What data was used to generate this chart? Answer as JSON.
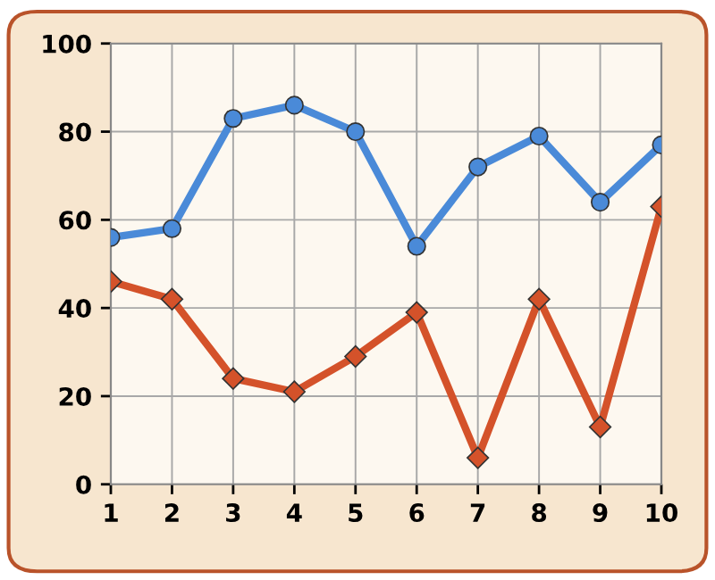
{
  "chart_data": {
    "type": "line",
    "x": [
      1,
      2,
      3,
      4,
      5,
      6,
      7,
      8,
      9,
      10
    ],
    "xlim": [
      1,
      10
    ],
    "xticks": [
      1,
      2,
      3,
      4,
      5,
      6,
      7,
      8,
      9,
      10
    ],
    "ylim": [
      0,
      100
    ],
    "yticks": [
      0,
      20,
      40,
      60,
      80,
      100
    ],
    "grid": true,
    "line_style": "solid",
    "series": [
      {
        "color": "#4a8ad8",
        "marker": "circle",
        "values": [
          56,
          58,
          83,
          86,
          80,
          54,
          72,
          79,
          64,
          77
        ]
      },
      {
        "color": "#d4522a",
        "marker": "diamond",
        "values": [
          46,
          42,
          24,
          21,
          29,
          39,
          6,
          42,
          13,
          63
        ]
      }
    ]
  }
}
